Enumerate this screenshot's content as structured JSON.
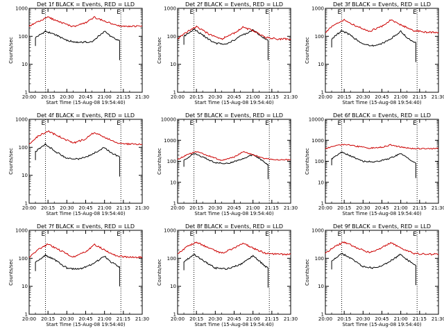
{
  "window": {
    "title": ""
  },
  "chart_data": [
    {
      "type": "line",
      "title": "Det 1f BLACK = Events, RED = LLD",
      "xlabel": "Start Time (15-Aug-08 19:54:40)",
      "ylabel": "Counts/sec",
      "yscale": "log",
      "ylim": [
        1,
        1000
      ],
      "xlim": [
        "20:00",
        "21:30"
      ],
      "x_ticks": [
        "20:00",
        "20:15",
        "20:30",
        "20:45",
        "21:00",
        "21:15",
        "21:30"
      ],
      "y_ticks": [
        "1",
        "10",
        "100",
        "1000"
      ],
      "markers": [
        {
          "time": "20:13",
          "label": "E"
        },
        {
          "time": "21:13",
          "label": "E"
        }
      ],
      "grid": false,
      "legend": "none",
      "series": [
        {
          "name": "BLACK = Events",
          "color": "#000000",
          "x": [
            "20:05",
            "20:13",
            "20:20",
            "20:30",
            "20:40",
            "20:50",
            "21:00",
            "21:05",
            "21:10",
            "21:12"
          ],
          "y": [
            90,
            150,
            120,
            70,
            60,
            65,
            150,
            100,
            75,
            70
          ]
        },
        {
          "name": "RED = LLD",
          "color": "#cc0000",
          "x": [
            "20:00",
            "20:07",
            "20:15",
            "20:25",
            "20:35",
            "20:45",
            "20:52",
            "21:00",
            "21:10",
            "21:20",
            "21:30"
          ],
          "y": [
            230,
            330,
            480,
            320,
            220,
            300,
            480,
            350,
            240,
            230,
            230
          ]
        }
      ]
    },
    {
      "type": "line",
      "title": "Det 2f BLACK = Events, RED = LLD",
      "xlabel": "Start Time (15-Aug-08 19:54:40)",
      "ylabel": "Counts/sec",
      "yscale": "log",
      "ylim": [
        1,
        1000
      ],
      "xlim": [
        "20:00",
        "21:30"
      ],
      "x_ticks": [
        "20:00",
        "20:15",
        "20:30",
        "20:45",
        "21:00",
        "21:15",
        "21:30"
      ],
      "y_ticks": [
        "1",
        "10",
        "100",
        "1000"
      ],
      "markers": [
        {
          "time": "20:13",
          "label": "E"
        },
        {
          "time": "21:13",
          "label": "E"
        }
      ],
      "grid": false,
      "legend": "none",
      "series": [
        {
          "name": "BLACK = Events",
          "color": "#000000",
          "x": [
            "20:05",
            "20:13",
            "20:20",
            "20:30",
            "20:40",
            "20:50",
            "21:00",
            "21:05",
            "21:10",
            "21:12"
          ],
          "y": [
            100,
            180,
            110,
            55,
            55,
            100,
            170,
            110,
            80,
            70
          ]
        },
        {
          "name": "RED = LLD",
          "color": "#cc0000",
          "x": [
            "20:00",
            "20:07",
            "20:15",
            "20:25",
            "20:35",
            "20:45",
            "20:52",
            "21:00",
            "21:10",
            "21:20",
            "21:30"
          ],
          "y": [
            80,
            140,
            220,
            120,
            80,
            130,
            210,
            160,
            90,
            80,
            80
          ]
        }
      ]
    },
    {
      "type": "line",
      "title": "Det 3f BLACK = Events, RED = LLD",
      "xlabel": "Start Time (15-Aug-08 19:54:40)",
      "ylabel": "Counts/sec",
      "yscale": "log",
      "ylim": [
        1,
        1000
      ],
      "xlim": [
        "20:00",
        "21:30"
      ],
      "x_ticks": [
        "20:00",
        "20:15",
        "20:30",
        "20:45",
        "21:00",
        "21:15",
        "21:30"
      ],
      "y_ticks": [
        "1",
        "10",
        "100",
        "1000"
      ],
      "markers": [
        {
          "time": "20:13",
          "label": "E"
        },
        {
          "time": "21:13",
          "label": "E"
        }
      ],
      "grid": false,
      "legend": "none",
      "series": [
        {
          "name": "BLACK = Events",
          "color": "#000000",
          "x": [
            "20:05",
            "20:13",
            "20:20",
            "20:30",
            "20:40",
            "20:50",
            "21:00",
            "21:05",
            "21:10",
            "21:12"
          ],
          "y": [
            80,
            160,
            110,
            50,
            45,
            70,
            150,
            90,
            65,
            60
          ]
        },
        {
          "name": "RED = LLD",
          "color": "#cc0000",
          "x": [
            "20:00",
            "20:07",
            "20:15",
            "20:25",
            "20:35",
            "20:45",
            "20:52",
            "21:00",
            "21:10",
            "21:20",
            "21:30"
          ],
          "y": [
            140,
            250,
            380,
            230,
            150,
            230,
            380,
            260,
            160,
            140,
            140
          ]
        }
      ]
    },
    {
      "type": "line",
      "title": "Det 4f BLACK = Events, RED = LLD",
      "xlabel": "Start Time (15-Aug-08 19:54:40)",
      "ylabel": "Counts/sec",
      "yscale": "log",
      "ylim": [
        1,
        1000
      ],
      "xlim": [
        "20:00",
        "21:30"
      ],
      "x_ticks": [
        "20:00",
        "20:15",
        "20:30",
        "20:45",
        "21:00",
        "21:15",
        "21:30"
      ],
      "y_ticks": [
        "1",
        "10",
        "100",
        "1000"
      ],
      "markers": [
        {
          "time": "20:13",
          "label": "E"
        },
        {
          "time": "21:13",
          "label": "E"
        }
      ],
      "grid": false,
      "legend": "none",
      "series": [
        {
          "name": "BLACK = Events",
          "color": "#000000",
          "x": [
            "20:05",
            "20:13",
            "20:20",
            "20:30",
            "20:40",
            "20:50",
            "21:00",
            "21:05",
            "21:10",
            "21:12"
          ],
          "y": [
            70,
            130,
            75,
            40,
            38,
            55,
            100,
            65,
            50,
            45
          ]
        },
        {
          "name": "RED = LLD",
          "color": "#cc0000",
          "x": [
            "20:00",
            "20:07",
            "20:15",
            "20:25",
            "20:35",
            "20:45",
            "20:52",
            "21:00",
            "21:10",
            "21:20",
            "21:30"
          ],
          "y": [
            130,
            250,
            380,
            230,
            140,
            200,
            350,
            230,
            140,
            130,
            130
          ]
        }
      ]
    },
    {
      "type": "line",
      "title": "Det 5f BLACK = Events, RED = LLD",
      "xlabel": "Start Time (15-Aug-08 19:54:40)",
      "ylabel": "Counts/sec",
      "yscale": "log",
      "ylim": [
        1,
        10000
      ],
      "xlim": [
        "20:00",
        "21:30"
      ],
      "x_ticks": [
        "20:00",
        "20:15",
        "20:30",
        "20:45",
        "21:00",
        "21:15",
        "21:30"
      ],
      "y_ticks": [
        "1",
        "10",
        "100",
        "1000",
        "10000"
      ],
      "markers": [
        {
          "time": "20:13",
          "label": "E"
        },
        {
          "time": "21:13",
          "label": "E"
        }
      ],
      "grid": false,
      "legend": "none",
      "series": [
        {
          "name": "BLACK = Events",
          "color": "#000000",
          "x": [
            "20:05",
            "20:13",
            "20:20",
            "20:30",
            "20:40",
            "20:50",
            "21:00",
            "21:05",
            "21:10",
            "21:12"
          ],
          "y": [
            110,
            240,
            160,
            85,
            80,
            120,
            210,
            140,
            80,
            70
          ]
        },
        {
          "name": "RED = LLD",
          "color": "#cc0000",
          "x": [
            "20:00",
            "20:07",
            "20:15",
            "20:25",
            "20:35",
            "20:45",
            "20:52",
            "21:00",
            "21:10",
            "21:20",
            "21:30"
          ],
          "y": [
            120,
            200,
            290,
            180,
            110,
            160,
            290,
            200,
            130,
            120,
            120
          ]
        }
      ]
    },
    {
      "type": "line",
      "title": "Det 6f BLACK = Events, RED = LLD",
      "xlabel": "Start Time (15-Aug-08 19:54:40)",
      "ylabel": "Counts/sec",
      "yscale": "log",
      "ylim": [
        1,
        10000
      ],
      "xlim": [
        "20:00",
        "21:30"
      ],
      "x_ticks": [
        "20:00",
        "20:15",
        "20:30",
        "20:45",
        "21:00",
        "21:15",
        "21:30"
      ],
      "y_ticks": [
        "1",
        "10",
        "100",
        "1000",
        "10000"
      ],
      "markers": [
        {
          "time": "20:13",
          "label": "E"
        },
        {
          "time": "21:13",
          "label": "E"
        }
      ],
      "grid": false,
      "legend": "none",
      "series": [
        {
          "name": "BLACK = Events",
          "color": "#000000",
          "x": [
            "20:05",
            "20:13",
            "20:20",
            "20:30",
            "20:40",
            "20:50",
            "21:00",
            "21:05",
            "21:10",
            "21:12"
          ],
          "y": [
            130,
            280,
            180,
            100,
            95,
            130,
            230,
            150,
            90,
            80
          ]
        },
        {
          "name": "RED = LLD",
          "color": "#cc0000",
          "x": [
            "20:00",
            "20:07",
            "20:15",
            "20:25",
            "20:35",
            "20:45",
            "20:52",
            "21:00",
            "21:10",
            "21:20",
            "21:30"
          ],
          "y": [
            400,
            520,
            650,
            520,
            420,
            470,
            600,
            480,
            400,
            400,
            400
          ]
        }
      ]
    },
    {
      "type": "line",
      "title": "Det 7f BLACK = Events, RED = LLD",
      "xlabel": "Start Time (15-Aug-08 19:54:40)",
      "ylabel": "Counts/sec",
      "yscale": "log",
      "ylim": [
        1,
        1000
      ],
      "xlim": [
        "20:00",
        "21:30"
      ],
      "x_ticks": [
        "20:00",
        "20:15",
        "20:30",
        "20:45",
        "21:00",
        "21:15",
        "21:30"
      ],
      "y_ticks": [
        "1",
        "10",
        "100",
        "1000"
      ],
      "markers": [
        {
          "time": "20:13",
          "label": "E"
        },
        {
          "time": "21:13",
          "label": "E"
        }
      ],
      "grid": false,
      "legend": "none",
      "series": [
        {
          "name": "BLACK = Events",
          "color": "#000000",
          "x": [
            "20:05",
            "20:13",
            "20:20",
            "20:30",
            "20:40",
            "20:50",
            "21:00",
            "21:05",
            "21:10",
            "21:12"
          ],
          "y": [
            70,
            130,
            90,
            45,
            40,
            60,
            120,
            75,
            55,
            50
          ]
        },
        {
          "name": "RED = LLD",
          "color": "#cc0000",
          "x": [
            "20:00",
            "20:07",
            "20:15",
            "20:25",
            "20:35",
            "20:45",
            "20:52",
            "21:00",
            "21:10",
            "21:20",
            "21:30"
          ],
          "y": [
            110,
            200,
            320,
            190,
            110,
            170,
            310,
            200,
            120,
            110,
            110
          ]
        }
      ]
    },
    {
      "type": "line",
      "title": "Det 8f BLACK = Events, RED = LLD",
      "xlabel": "Start Time (15-Aug-08 19:54:40)",
      "ylabel": "Counts/sec",
      "yscale": "log",
      "ylim": [
        1,
        1000
      ],
      "xlim": [
        "20:00",
        "21:30"
      ],
      "x_ticks": [
        "20:00",
        "20:15",
        "20:30",
        "20:45",
        "21:00",
        "21:15",
        "21:30"
      ],
      "y_ticks": [
        "1",
        "10",
        "100",
        "1000"
      ],
      "markers": [
        {
          "time": "20:13",
          "label": "E"
        },
        {
          "time": "21:13",
          "label": "E"
        }
      ],
      "grid": false,
      "legend": "none",
      "series": [
        {
          "name": "BLACK = Events",
          "color": "#000000",
          "x": [
            "20:05",
            "20:13",
            "20:20",
            "20:30",
            "20:40",
            "20:50",
            "21:00",
            "21:05",
            "21:10",
            "21:12"
          ],
          "y": [
            75,
            140,
            85,
            45,
            42,
            60,
            120,
            80,
            50,
            45
          ]
        },
        {
          "name": "RED = LLD",
          "color": "#cc0000",
          "x": [
            "20:00",
            "20:07",
            "20:15",
            "20:25",
            "20:35",
            "20:45",
            "20:52",
            "21:00",
            "21:10",
            "21:20",
            "21:30"
          ],
          "y": [
            150,
            250,
            380,
            230,
            150,
            230,
            350,
            230,
            150,
            140,
            140
          ]
        }
      ]
    },
    {
      "type": "line",
      "title": "Det 9f BLACK = Events, RED = LLD",
      "xlabel": "Start Time (15-Aug-08 19:54:40)",
      "ylabel": "Counts/sec",
      "yscale": "log",
      "ylim": [
        1,
        1000
      ],
      "xlim": [
        "20:00",
        "21:30"
      ],
      "x_ticks": [
        "20:00",
        "20:15",
        "20:30",
        "20:45",
        "21:00",
        "21:15",
        "21:30"
      ],
      "y_ticks": [
        "1",
        "10",
        "100",
        "1000"
      ],
      "markers": [
        {
          "time": "20:13",
          "label": "E"
        },
        {
          "time": "21:13",
          "label": "E"
        }
      ],
      "grid": false,
      "legend": "none",
      "series": [
        {
          "name": "BLACK = Events",
          "color": "#000000",
          "x": [
            "20:05",
            "20:13",
            "20:20",
            "20:30",
            "20:40",
            "20:50",
            "21:00",
            "21:05",
            "21:10",
            "21:12"
          ],
          "y": [
            80,
            150,
            100,
            50,
            45,
            70,
            140,
            90,
            60,
            55
          ]
        },
        {
          "name": "RED = LLD",
          "color": "#cc0000",
          "x": [
            "20:00",
            "20:07",
            "20:15",
            "20:25",
            "20:35",
            "20:45",
            "20:52",
            "21:00",
            "21:10",
            "21:20",
            "21:30"
          ],
          "y": [
            150,
            260,
            380,
            240,
            160,
            240,
            360,
            240,
            150,
            140,
            140
          ]
        }
      ]
    }
  ]
}
